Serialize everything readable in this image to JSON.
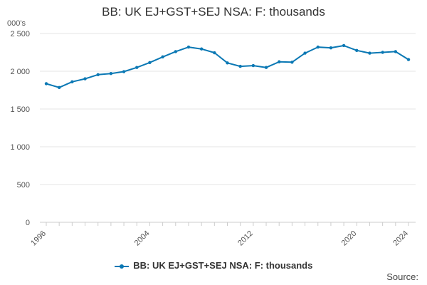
{
  "chart_data": {
    "type": "line",
    "title": "BB: UK EJ+GST+SEJ NSA: F: thousands",
    "y_unit_label": "000's",
    "ylim": [
      0,
      2500
    ],
    "y_ticks": [
      "0",
      "500",
      "1 000",
      "1 500",
      "2 000",
      "2 500"
    ],
    "y_tick_values": [
      0,
      500,
      1000,
      1500,
      2000,
      2500
    ],
    "xlim": [
      1996,
      2024
    ],
    "x_ticks": [
      "1996",
      "2004",
      "2012",
      "2020",
      "2024"
    ],
    "x_tick_values": [
      1996,
      2004,
      2012,
      2020,
      2024
    ],
    "grid": "horizontal",
    "legend_position": "bottom",
    "series": [
      {
        "name": "BB: UK EJ+GST+SEJ NSA: F: thousands",
        "color": "#0a78b4",
        "x": [
          1996,
          1997,
          1998,
          1999,
          2000,
          2001,
          2002,
          2003,
          2004,
          2005,
          2006,
          2007,
          2008,
          2009,
          2010,
          2011,
          2012,
          2013,
          2014,
          2015,
          2016,
          2017,
          2018,
          2019,
          2020,
          2021,
          2022,
          2023,
          2024
        ],
        "values": [
          1835,
          1785,
          1860,
          1900,
          1955,
          1970,
          1995,
          2050,
          2115,
          2190,
          2260,
          2320,
          2295,
          2245,
          2110,
          2065,
          2075,
          2050,
          2125,
          2120,
          2240,
          2320,
          2310,
          2340,
          2275,
          2240,
          2250,
          2260,
          2155
        ]
      }
    ]
  },
  "source_label": "Source:"
}
